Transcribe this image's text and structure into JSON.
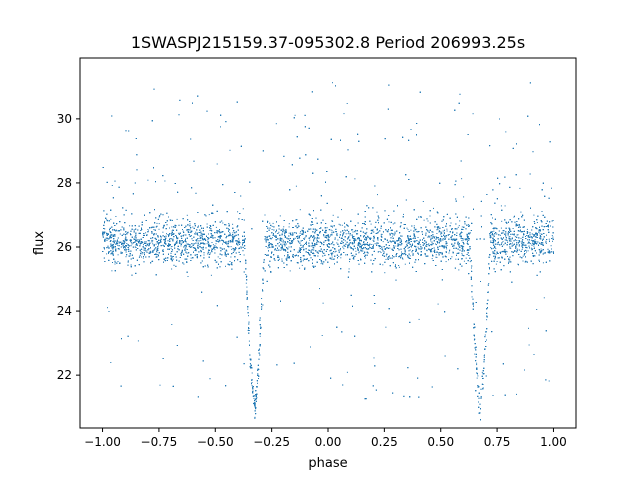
{
  "chart_data": {
    "type": "scatter",
    "title": "1SWASPJ215159.37-095302.8 Period 206993.25s",
    "xlabel": "phase",
    "ylabel": "flux",
    "xlim": [
      -1.1,
      1.1
    ],
    "ylim": [
      20.35,
      31.9
    ],
    "xticks": [
      -1.0,
      -0.75,
      -0.5,
      -0.25,
      0.0,
      0.25,
      0.5,
      0.75,
      1.0
    ],
    "xtick_labels": [
      "−1.00",
      "−0.75",
      "−0.50",
      "−0.25",
      "0.00",
      "0.25",
      "0.50",
      "0.75",
      "1.00"
    ],
    "yticks": [
      22,
      24,
      26,
      28,
      30
    ],
    "ytick_labels": [
      "22",
      "24",
      "26",
      "28",
      "30"
    ],
    "grid": false,
    "marker_color": "#1f77b4",
    "series": [
      {
        "baseline_flux": 26.15,
        "baseline_scatter": 0.35,
        "eclipses": [
          {
            "phase_center": -0.325,
            "min_flux": 21.0,
            "half_width": 0.045
          },
          {
            "phase_center": 0.675,
            "min_flux": 21.0,
            "half_width": 0.045
          }
        ],
        "phase_range": [
          -1.0,
          1.0
        ],
        "approx_point_count": 12000
      }
    ]
  }
}
